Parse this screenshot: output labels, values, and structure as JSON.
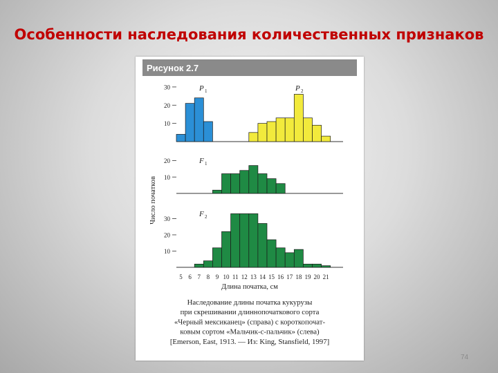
{
  "slide": {
    "title": "Особенности наследования количественных признаков",
    "page_number": "74"
  },
  "figure": {
    "header": "Рисунок 2.7",
    "ylabel": "Число початков",
    "xlabel": "Длина початка, см",
    "caption": [
      "Наследование длины початка кукурузы",
      "при скрешивании длиннопочаткового сорта",
      "«Черный мексиканец» (справа) с короткопочат-",
      "ковым сортом «Мальчик-с-пальчик» (слева)",
      "[Emerson, East, 1913. — Из: King, Stansfield, 1997]"
    ],
    "colors": {
      "header_bg": "#8a8a8a",
      "p1": "#2b8fd6",
      "p2": "#f2ea3c",
      "f": "#1f8a44"
    }
  },
  "chart_data": [
    {
      "type": "bar",
      "panel": "P1",
      "label": "P",
      "subscript": "1",
      "series": [
        {
          "name": "P1",
          "x": [
            5,
            6,
            7,
            8
          ],
          "values": [
            4,
            21,
            24,
            11
          ]
        },
        {
          "name": "P2",
          "x": [
            13,
            14,
            15,
            16,
            17,
            18,
            19,
            20,
            21
          ],
          "values": [
            5,
            10,
            11,
            13,
            13,
            26,
            13,
            9,
            3
          ]
        }
      ],
      "second_label": "P",
      "second_subscript": "2",
      "yticks": [
        "30",
        "20",
        "10"
      ],
      "ylim": [
        0,
        33
      ]
    },
    {
      "type": "bar",
      "panel": "F1",
      "label": "F",
      "subscript": "1",
      "series": [
        {
          "name": "F1",
          "x": [
            9,
            10,
            11,
            12,
            13,
            14,
            15,
            16
          ],
          "values": [
            2,
            12,
            12,
            14,
            17,
            12,
            9,
            6
          ]
        }
      ],
      "yticks": [
        "20",
        "10"
      ],
      "ylim": [
        0,
        24
      ]
    },
    {
      "type": "bar",
      "panel": "F2",
      "label": "F",
      "subscript": "2",
      "series": [
        {
          "name": "F2",
          "x": [
            7,
            8,
            9,
            10,
            11,
            12,
            13,
            14,
            15,
            16,
            17,
            18,
            19,
            20,
            21
          ],
          "values": [
            2,
            4,
            12,
            22,
            33,
            33,
            33,
            27,
            17,
            12,
            9,
            11,
            2,
            2,
            1
          ]
        }
      ],
      "yticks": [
        "30",
        "20",
        "10"
      ],
      "ylim": [
        0,
        37
      ]
    }
  ],
  "x_ticks": [
    "5",
    "6",
    "7",
    "8",
    "9",
    "10",
    "11",
    "12",
    "13",
    "14",
    "15",
    "16",
    "17",
    "18",
    "19",
    "20",
    "21"
  ]
}
